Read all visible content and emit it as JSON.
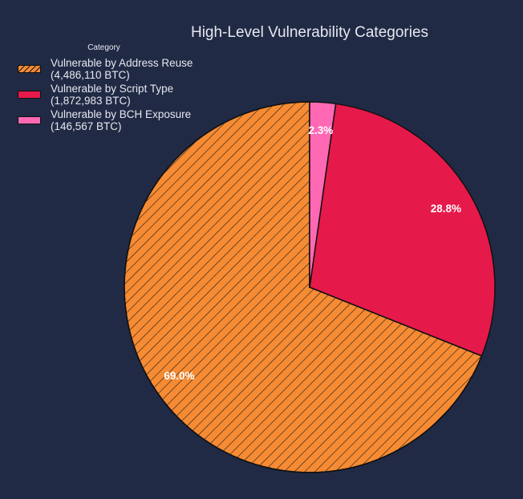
{
  "chart_data": {
    "type": "pie",
    "title": "High-Level Vulnerability Categories",
    "legend_title": "Category",
    "legend_placement": "top-left",
    "start_angle_deg": 90,
    "counterclockwise": true,
    "slices": [
      {
        "label": "Vulnerable by Address Reuse",
        "value_label": "(4,486,110 BTC)",
        "value": 4486110,
        "pct_label": "69.0%",
        "color": "#f68b33",
        "hatch": true
      },
      {
        "label": "Vulnerable by Script Type",
        "value_label": "(1,872,983 BTC)",
        "value": 1872983,
        "pct_label": "28.8%",
        "color": "#e6194b",
        "hatch": false
      },
      {
        "label": "Vulnerable by BCH Exposure",
        "value_label": "(146,567 BTC)",
        "value": 146567,
        "pct_label": "2.3%",
        "color": "#ff69b4",
        "hatch": false
      }
    ]
  },
  "colors": {
    "background": "#212a45",
    "text": "#e6e8ef"
  }
}
